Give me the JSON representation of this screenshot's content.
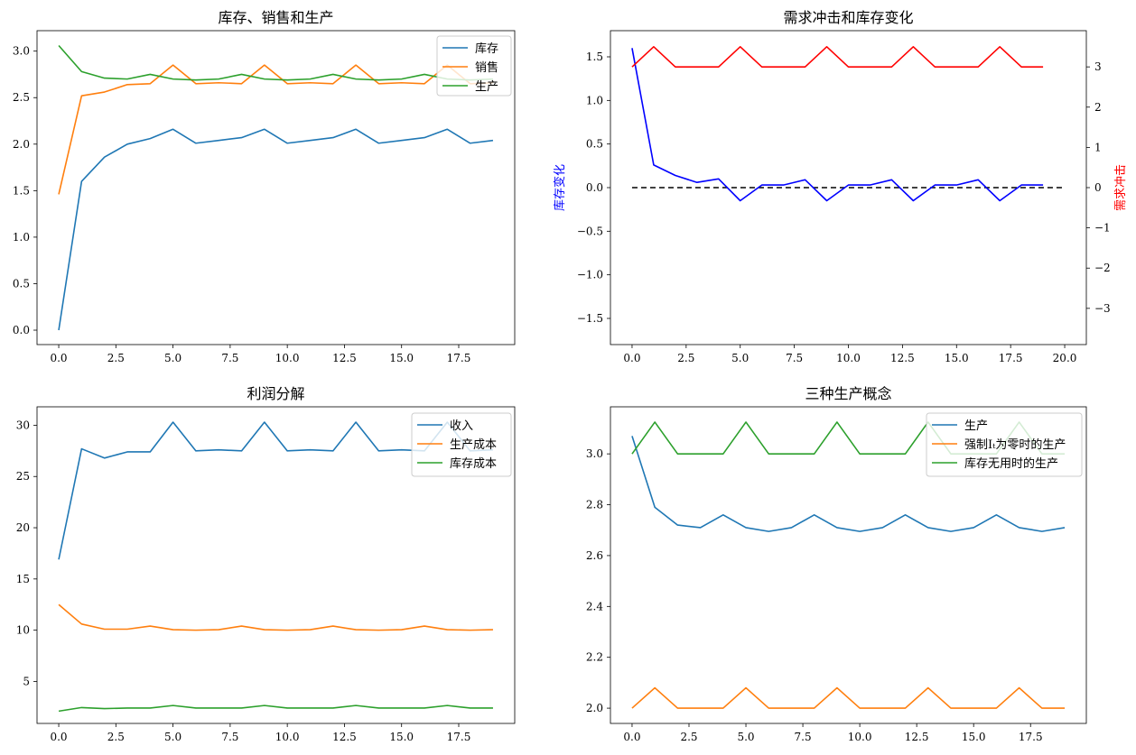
{
  "chart_data": [
    {
      "type": "line",
      "title": "库存、销售和生产",
      "x": [
        0,
        1,
        2,
        3,
        4,
        5,
        6,
        7,
        8,
        9,
        10,
        11,
        12,
        13,
        14,
        15,
        16,
        17,
        18,
        19
      ],
      "xlim": [
        -0.95,
        19.95
      ],
      "xticks": [
        0.0,
        2.5,
        5.0,
        7.5,
        10.0,
        12.5,
        15.0,
        17.5
      ],
      "xtick_labels": [
        "0.0",
        "2.5",
        "5.0",
        "7.5",
        "10.0",
        "12.5",
        "15.0",
        "17.5"
      ],
      "ylim": [
        -0.155,
        3.22
      ],
      "yticks": [
        0.0,
        0.5,
        1.0,
        1.5,
        2.0,
        2.5,
        3.0
      ],
      "ytick_labels": [
        "0.0",
        "0.5",
        "1.0",
        "1.5",
        "2.0",
        "2.5",
        "3.0"
      ],
      "legend": "top-right",
      "series": [
        {
          "name": "库存",
          "color": "#1f77b4",
          "values": [
            0.0,
            1.6,
            1.86,
            2.0,
            2.06,
            2.16,
            2.01,
            2.04,
            2.07,
            2.16,
            2.01,
            2.04,
            2.07,
            2.16,
            2.01,
            2.04,
            2.07,
            2.16,
            2.01,
            2.04
          ]
        },
        {
          "name": "销售",
          "color": "#ff7f0e",
          "values": [
            1.46,
            2.52,
            2.56,
            2.64,
            2.65,
            2.85,
            2.65,
            2.66,
            2.65,
            2.85,
            2.65,
            2.66,
            2.65,
            2.85,
            2.65,
            2.66,
            2.65,
            2.85,
            2.65,
            2.66
          ]
        },
        {
          "name": "生产",
          "color": "#2ca02c",
          "values": [
            3.06,
            2.78,
            2.71,
            2.7,
            2.75,
            2.7,
            2.69,
            2.7,
            2.75,
            2.7,
            2.69,
            2.7,
            2.75,
            2.7,
            2.69,
            2.7,
            2.75,
            2.7,
            2.69,
            2.7
          ]
        }
      ]
    },
    {
      "type": "line",
      "title": "需求冲击和库存变化",
      "ylabel": "库存变化",
      "ylabel_right": "需求冲击",
      "x": [
        0,
        1,
        2,
        3,
        4,
        5,
        6,
        7,
        8,
        9,
        10,
        11,
        12,
        13,
        14,
        15,
        16,
        17,
        18,
        19
      ],
      "xlim": [
        -1.0,
        21.0
      ],
      "xticks": [
        0.0,
        2.5,
        5.0,
        7.5,
        10.0,
        12.5,
        15.0,
        17.5,
        20.0
      ],
      "xtick_labels": [
        "0.0",
        "2.5",
        "5.0",
        "7.5",
        "10.0",
        "12.5",
        "15.0",
        "17.5",
        "20.0"
      ],
      "ylim": [
        -1.8,
        1.8
      ],
      "yticks": [
        -1.5,
        -1.0,
        -0.5,
        0.0,
        0.5,
        1.0,
        1.5
      ],
      "ytick_labels": [
        "−1.5",
        "−1.0",
        "−0.5",
        "0.0",
        "0.5",
        "1.0",
        "1.5"
      ],
      "ylim_right": [
        -3.9,
        3.9
      ],
      "yticks_right": [
        -3,
        -2,
        -1,
        0,
        1,
        2,
        3
      ],
      "ytick_labels_right": [
        "−3",
        "−2",
        "−1",
        "0",
        "1",
        "2",
        "3"
      ],
      "zero_line": {
        "x0": 0,
        "x1": 20,
        "value": 0,
        "style": "dashed",
        "color": "#000000"
      },
      "series": [
        {
          "axis": "left",
          "color": "#0000ff",
          "values": [
            1.6,
            0.26,
            0.14,
            0.06,
            0.1,
            -0.15,
            0.03,
            0.03,
            0.09,
            -0.15,
            0.03,
            0.03,
            0.09,
            -0.15,
            0.03,
            0.03,
            0.09,
            -0.15,
            0.03,
            0.03
          ]
        },
        {
          "axis": "right",
          "color": "#ff0000",
          "values": [
            3.0,
            3.5,
            3.0,
            3.0,
            3.0,
            3.5,
            3.0,
            3.0,
            3.0,
            3.5,
            3.0,
            3.0,
            3.0,
            3.5,
            3.0,
            3.0,
            3.0,
            3.5,
            3.0,
            3.0
          ]
        }
      ]
    },
    {
      "type": "line",
      "title": "利润分解",
      "x": [
        0,
        1,
        2,
        3,
        4,
        5,
        6,
        7,
        8,
        9,
        10,
        11,
        12,
        13,
        14,
        15,
        16,
        17,
        18,
        19
      ],
      "xlim": [
        -0.95,
        19.95
      ],
      "xticks": [
        0.0,
        2.5,
        5.0,
        7.5,
        10.0,
        12.5,
        15.0,
        17.5
      ],
      "xtick_labels": [
        "0.0",
        "2.5",
        "5.0",
        "7.5",
        "10.0",
        "12.5",
        "15.0",
        "17.5"
      ],
      "ylim": [
        0.9,
        31.8
      ],
      "yticks": [
        5,
        10,
        15,
        20,
        25,
        30
      ],
      "ytick_labels": [
        "5",
        "10",
        "15",
        "20",
        "25",
        "30"
      ],
      "legend": "top-right",
      "series": [
        {
          "name": "收入",
          "color": "#1f77b4",
          "values": [
            16.9,
            27.7,
            26.8,
            27.4,
            27.4,
            30.3,
            27.5,
            27.6,
            27.5,
            30.3,
            27.5,
            27.6,
            27.5,
            30.3,
            27.5,
            27.6,
            27.5,
            30.3,
            27.5,
            27.6
          ]
        },
        {
          "name": "生产成本",
          "color": "#ff7f0e",
          "values": [
            12.5,
            10.6,
            10.1,
            10.1,
            10.4,
            10.05,
            10.0,
            10.05,
            10.4,
            10.05,
            10.0,
            10.05,
            10.4,
            10.05,
            10.0,
            10.05,
            10.4,
            10.05,
            10.0,
            10.05
          ]
        },
        {
          "name": "库存成本",
          "color": "#2ca02c",
          "values": [
            2.1,
            2.45,
            2.35,
            2.4,
            2.4,
            2.65,
            2.4,
            2.4,
            2.4,
            2.65,
            2.4,
            2.4,
            2.4,
            2.65,
            2.4,
            2.4,
            2.4,
            2.65,
            2.4,
            2.4
          ]
        }
      ]
    },
    {
      "type": "line",
      "title": "三种生产概念",
      "x": [
        0,
        1,
        2,
        3,
        4,
        5,
        6,
        7,
        8,
        9,
        10,
        11,
        12,
        13,
        14,
        15,
        16,
        17,
        18,
        19
      ],
      "xlim": [
        -0.95,
        19.95
      ],
      "xticks": [
        0.0,
        2.5,
        5.0,
        7.5,
        10.0,
        12.5,
        15.0,
        17.5
      ],
      "xtick_labels": [
        "0.0",
        "2.5",
        "5.0",
        "7.5",
        "10.0",
        "12.5",
        "15.0",
        "17.5"
      ],
      "ylim": [
        1.94,
        3.185
      ],
      "yticks": [
        2.0,
        2.2,
        2.4,
        2.6,
        2.8,
        3.0
      ],
      "ytick_labels": [
        "2.0",
        "2.2",
        "2.4",
        "2.6",
        "2.8",
        "3.0"
      ],
      "legend": "top-right",
      "series": [
        {
          "name": "生产",
          "color": "#1f77b4",
          "values": [
            3.07,
            2.79,
            2.72,
            2.71,
            2.76,
            2.71,
            2.695,
            2.71,
            2.76,
            2.71,
            2.695,
            2.71,
            2.76,
            2.71,
            2.695,
            2.71,
            2.76,
            2.71,
            2.695,
            2.71
          ]
        },
        {
          "name": "强制I_t为零时的生产",
          "color": "#ff7f0e",
          "values": [
            2.0,
            2.08,
            2.0,
            2.0,
            2.0,
            2.08,
            2.0,
            2.0,
            2.0,
            2.08,
            2.0,
            2.0,
            2.0,
            2.08,
            2.0,
            2.0,
            2.0,
            2.08,
            2.0,
            2.0
          ]
        },
        {
          "name": "库存无用时的生产",
          "color": "#2ca02c",
          "values": [
            3.0,
            3.125,
            3.0,
            3.0,
            3.0,
            3.125,
            3.0,
            3.0,
            3.0,
            3.125,
            3.0,
            3.0,
            3.0,
            3.125,
            3.0,
            3.0,
            3.0,
            3.125,
            3.0,
            3.0
          ]
        }
      ]
    }
  ]
}
